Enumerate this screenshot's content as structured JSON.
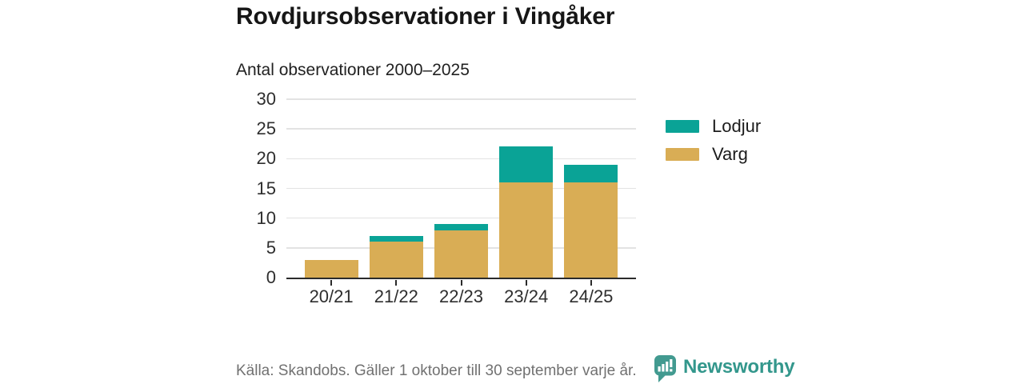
{
  "title": "Rovdjursobservationer i Vingåker",
  "subtitle": "Antal observationer 2000–2025",
  "footer": {
    "source": "Källa: Skandobs. Gäller 1 oktober till 30 september varje år."
  },
  "branding": {
    "name": "Newsworthy",
    "icon": "newsworthy-chart-bubble-icon",
    "color": "#33978c"
  },
  "colors": {
    "lodjur": "#0aa396",
    "varg": "#d9ad55",
    "axis_line": "#2b2b2b",
    "gridline": "#e3e3e3",
    "axis_text": "#2e2e2e"
  },
  "chart_data": {
    "type": "bar",
    "stacked": true,
    "title": "Rovdjursobservationer i Vingåker",
    "subtitle": "Antal observationer 2000–2025",
    "categories": [
      "20/21",
      "21/22",
      "22/23",
      "23/24",
      "24/25"
    ],
    "series": [
      {
        "name": "Varg",
        "color": "#d9ad55",
        "values": [
          3,
          6,
          8,
          16,
          16
        ]
      },
      {
        "name": "Lodjur",
        "color": "#0aa396",
        "values": [
          0,
          1,
          1,
          6,
          3
        ]
      }
    ],
    "totals": [
      3,
      7,
      9,
      22,
      19
    ],
    "xlabel": "",
    "ylabel": "",
    "ylim": [
      0,
      30
    ],
    "yticks": [
      0,
      5,
      10,
      15,
      20,
      25,
      30
    ],
    "grid": true,
    "legend_position": "right",
    "legend": [
      {
        "label": "Lodjur",
        "color": "#0aa396"
      },
      {
        "label": "Varg",
        "color": "#d9ad55"
      }
    ]
  }
}
